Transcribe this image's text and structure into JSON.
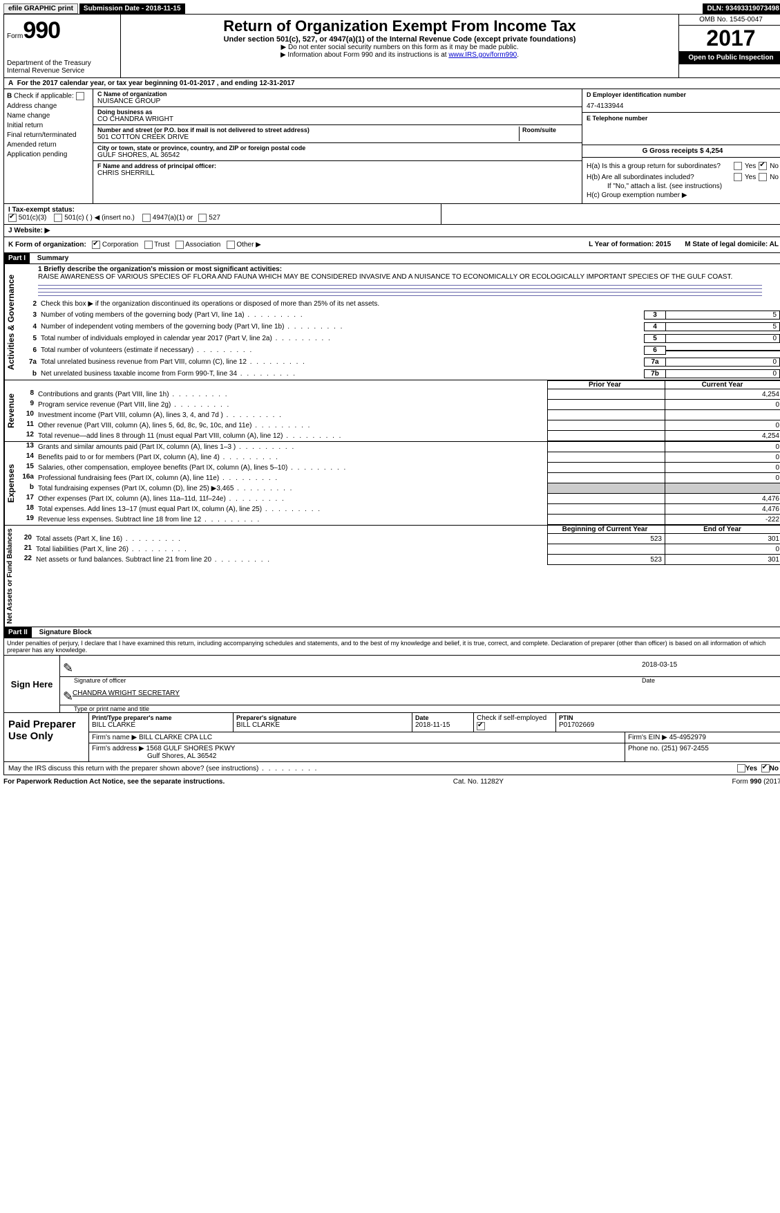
{
  "top_bar": {
    "efile": "efile GRAPHIC print",
    "submission": "Submission Date - 2018-11-15",
    "dln": "DLN: 93493319073498"
  },
  "header": {
    "form": "Form",
    "form_no": "990",
    "dept": "Department of the Treasury",
    "irs": "Internal Revenue Service",
    "title": "Return of Organization Exempt From Income Tax",
    "subtitle": "Under section 501(c), 527, or 4947(a)(1) of the Internal Revenue Code (except private foundations)",
    "helper1": "▶ Do not enter social security numbers on this form as it may be made public.",
    "helper2_pre": "▶ Information about Form 990 and its instructions is at ",
    "helper2_link": "www.IRS.gov/form990",
    "omb": "OMB No. 1545-0047",
    "year": "2017",
    "open": "Open to Public Inspection"
  },
  "A": "For the 2017 calendar year, or tax year beginning 01-01-2017     , and ending 12-31-2017",
  "B": {
    "label": "Check if applicable:",
    "items": [
      "Address change",
      "Name change",
      "Initial return",
      "Final return/terminated",
      "Amended return",
      "Application pending"
    ]
  },
  "C": {
    "name_lbl": "C Name of organization",
    "name": "NUISANCE GROUP",
    "dba_lbl": "Doing business as",
    "dba": "CO CHANDRA WRIGHT",
    "street_lbl": "Number and street (or P.O. box if mail is not delivered to street address)",
    "street": "501 COTTON CREEK DRIVE",
    "room_lbl": "Room/suite",
    "city_lbl": "City or town, state or province, country, and ZIP or foreign postal code",
    "city": "GULF SHORES, AL  36542"
  },
  "D": {
    "lbl": "D Employer identification number",
    "val": "47-4133944"
  },
  "E": {
    "lbl": "E Telephone number",
    "val": ""
  },
  "F": {
    "lbl": "F  Name and address of principal officer:",
    "val": "CHRIS SHERRILL"
  },
  "G": {
    "lbl": "G Gross receipts $ 4,254"
  },
  "H": {
    "a": "H(a)   Is this a group return for subordinates?",
    "b": "H(b)   Are all subordinates included?",
    "b_note": "If \"No,\" attach a list. (see instructions)",
    "c": "H(c)   Group exemption number ▶",
    "yes": "Yes",
    "no": "No"
  },
  "I": {
    "lbl": "I    Tax-exempt status:",
    "opts": [
      "501(c)(3)",
      "501(c) (  ) ◀ (insert no.)",
      "4947(a)(1) or",
      "527"
    ]
  },
  "J": "J    Website: ▶",
  "K": {
    "lbl": "K Form of organization:",
    "opts": [
      "Corporation",
      "Trust",
      "Association",
      "Other ▶"
    ]
  },
  "L": "L Year of formation: 2015",
  "M": "M State of legal domicile: AL",
  "part1": {
    "hdr": "Part I",
    "title": "Summary",
    "mission_lbl": "1   Briefly describe the organization's mission or most significant activities:",
    "mission": "RAISE AWARENESS OF VARIOUS SPECIES OF FLORA AND FAUNA WHICH MAY BE CONSIDERED INVASIVE AND A NUISANCE TO ECONOMICALLY OR ECOLOGICALLY IMPORTANT SPECIES OF THE GULF COAST.",
    "line2": "Check this box ▶      if the organization discontinued its operations or disposed of more than 25% of its net assets.",
    "lines": [
      {
        "n": "3",
        "t": "Number of voting members of the governing body (Part VI, line 1a)",
        "box": "3",
        "v": "5"
      },
      {
        "n": "4",
        "t": "Number of independent voting members of the governing body (Part VI, line 1b)",
        "box": "4",
        "v": "5"
      },
      {
        "n": "5",
        "t": "Total number of individuals employed in calendar year 2017 (Part V, line 2a)",
        "box": "5",
        "v": "0"
      },
      {
        "n": "6",
        "t": "Total number of volunteers (estimate if necessary)",
        "box": "6",
        "v": ""
      },
      {
        "n": "7a",
        "t": "Total unrelated business revenue from Part VIII, column (C), line 12",
        "box": "7a",
        "v": "0"
      },
      {
        "n": "b",
        "t": "Net unrelated business taxable income from Form 990-T, line 34",
        "box": "7b",
        "v": "0"
      }
    ],
    "prior_hdr": "Prior Year",
    "curr_hdr": "Current Year",
    "beg_hdr": "Beginning of Current Year",
    "end_hdr": "End of Year",
    "revenue": [
      {
        "n": "8",
        "t": "Contributions and grants (Part VIII, line 1h)",
        "p": "",
        "c": "4,254"
      },
      {
        "n": "9",
        "t": "Program service revenue (Part VIII, line 2g)",
        "p": "",
        "c": "0"
      },
      {
        "n": "10",
        "t": "Investment income (Part VIII, column (A), lines 3, 4, and 7d )",
        "p": "",
        "c": ""
      },
      {
        "n": "11",
        "t": "Other revenue (Part VIII, column (A), lines 5, 6d, 8c, 9c, 10c, and 11e)",
        "p": "",
        "c": "0"
      },
      {
        "n": "12",
        "t": "Total revenue—add lines 8 through 11 (must equal Part VIII, column (A), line 12)",
        "p": "",
        "c": "4,254"
      }
    ],
    "expenses": [
      {
        "n": "13",
        "t": "Grants and similar amounts paid (Part IX, column (A), lines 1–3 )",
        "p": "",
        "c": "0"
      },
      {
        "n": "14",
        "t": "Benefits paid to or for members (Part IX, column (A), line 4)",
        "p": "",
        "c": "0"
      },
      {
        "n": "15",
        "t": "Salaries, other compensation, employee benefits (Part IX, column (A), lines 5–10)",
        "p": "",
        "c": "0"
      },
      {
        "n": "16a",
        "t": "Professional fundraising fees (Part IX, column (A), line 11e)",
        "p": "",
        "c": "0"
      },
      {
        "n": "b",
        "t": "Total fundraising expenses (Part IX, column (D), line 25) ▶3,465",
        "p": "shade",
        "c": "shade"
      },
      {
        "n": "17",
        "t": "Other expenses (Part IX, column (A), lines 11a–11d, 11f–24e)",
        "p": "",
        "c": "4,476"
      },
      {
        "n": "18",
        "t": "Total expenses. Add lines 13–17 (must equal Part IX, column (A), line 25)",
        "p": "",
        "c": "4,476"
      },
      {
        "n": "19",
        "t": "Revenue less expenses. Subtract line 18 from line 12",
        "p": "",
        "c": "-222"
      }
    ],
    "netassets": [
      {
        "n": "20",
        "t": "Total assets (Part X, line 16)",
        "p": "523",
        "c": "301"
      },
      {
        "n": "21",
        "t": "Total liabilities (Part X, line 26)",
        "p": "",
        "c": "0"
      },
      {
        "n": "22",
        "t": "Net assets or fund balances. Subtract line 21 from line 20",
        "p": "523",
        "c": "301"
      }
    ],
    "side1": "Activities & Governance",
    "side2": "Revenue",
    "side3": "Expenses",
    "side4": "Net Assets or Fund Balances"
  },
  "part2": {
    "hdr": "Part II",
    "title": "Signature Block",
    "penalties": "Under penalties of perjury, I declare that I have examined this return, including accompanying schedules and statements, and to the best of my knowledge and belief, it is true, correct, and complete. Declaration of preparer (other than officer) is based on all information of which preparer has any knowledge.",
    "sign_here": "Sign Here",
    "sig_officer": "Signature of officer",
    "sig_date_lbl": "Date",
    "sig_date": "2018-03-15",
    "printed": "CHANDRA WRIGHT SECRETARY",
    "printed_lbl": "Type or print name and title"
  },
  "preparer": {
    "hdr": "Paid Preparer Use Only",
    "name_lbl": "Print/Type preparer's name",
    "name": "BILL CLARKE",
    "sig_lbl": "Preparer's signature",
    "sig": "BILL CLARKE",
    "date_lbl": "Date",
    "date": "2018-11-15",
    "self_lbl": "Check       if self-employed",
    "ptin_lbl": "PTIN",
    "ptin": "P01702669",
    "firm_name_lbl": "Firm's name    ▶",
    "firm_name": "BILL CLARKE CPA LLC",
    "firm_ein_lbl": "Firm's EIN ▶",
    "firm_ein": "45-4952979",
    "firm_addr_lbl": "Firm's address ▶",
    "firm_addr1": "1568 GULF SHORES PKWY",
    "firm_addr2": "Gulf Shores, AL  36542",
    "phone_lbl": "Phone no.",
    "phone": "(251) 967-2455"
  },
  "discuss": "May the IRS discuss this return with the preparer shown above? (see instructions)",
  "footer": {
    "pra": "For Paperwork Reduction Act Notice, see the separate instructions.",
    "cat": "Cat. No. 11282Y",
    "form": "Form 990 (2017)"
  }
}
